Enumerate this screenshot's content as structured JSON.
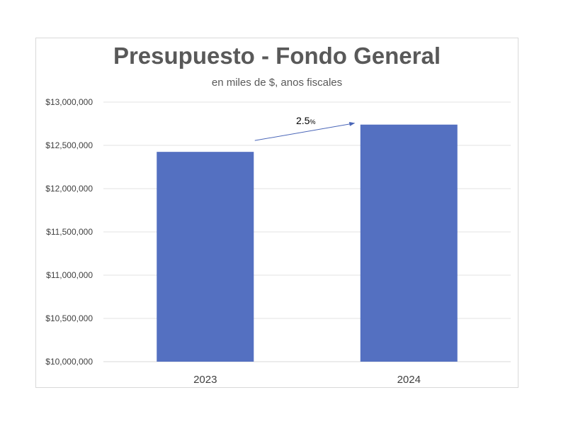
{
  "chart_data": {
    "type": "bar",
    "title": "Presupuesto - Fondo General",
    "subtitle": "en miles de $, anos fiscales",
    "xlabel": "",
    "ylabel": "",
    "categories": [
      "2023",
      "2024"
    ],
    "values": [
      12425000,
      12740000
    ],
    "ylim": [
      10000000,
      13000000
    ],
    "yticks": [
      10000000,
      10500000,
      11000000,
      11500000,
      12000000,
      12500000,
      13000000
    ],
    "ytick_labels": [
      "$10,000,000",
      "$10,500,000",
      "$11,000,000",
      "$11,500,000",
      "$12,000,000",
      "$12,500,000",
      "$13,000,000"
    ],
    "grid": true,
    "legend": "none",
    "bar_color": "#5470c1",
    "annotation": {
      "value": "2.5",
      "unit": "%",
      "arrow": "from 2023 bar to 2024 bar"
    }
  }
}
